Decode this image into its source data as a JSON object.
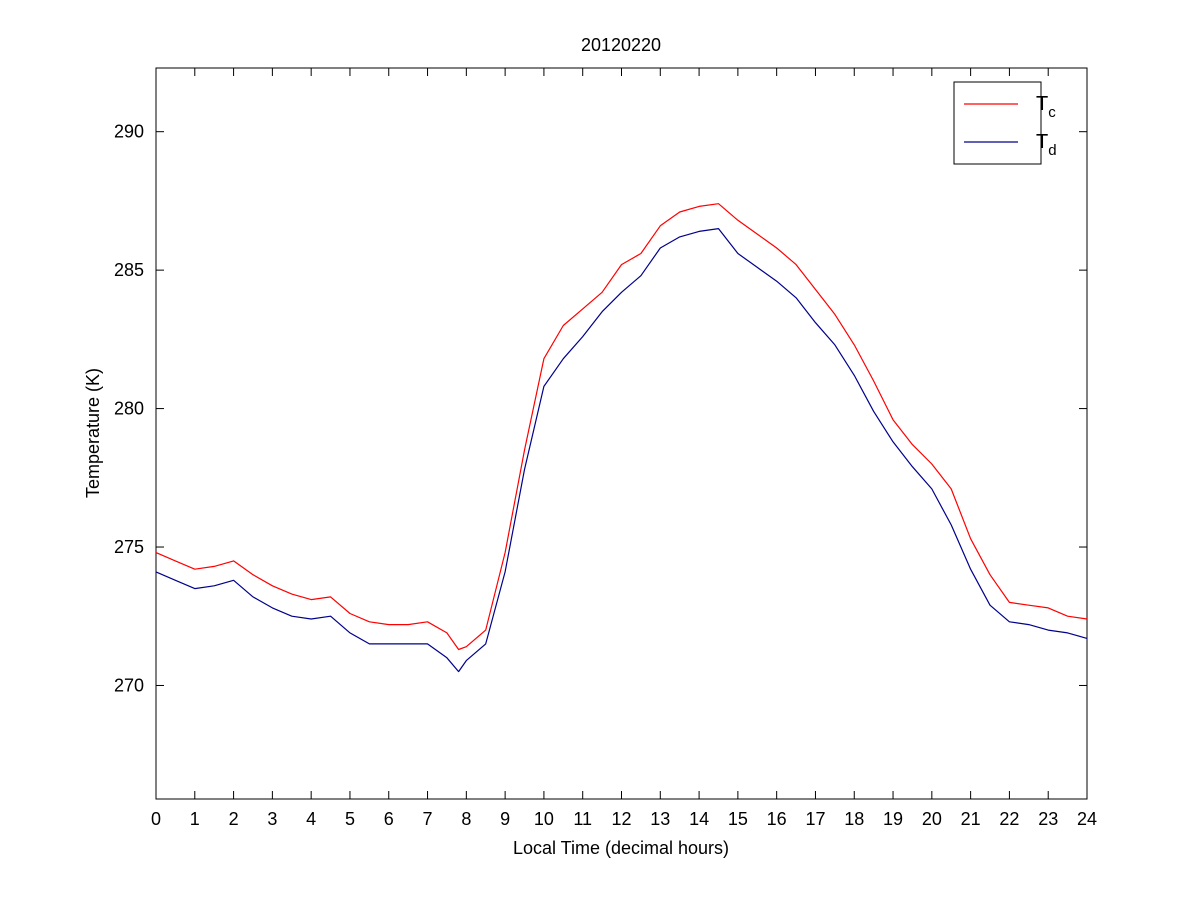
{
  "chart_data": {
    "type": "line",
    "title": "20120220",
    "xlabel": "Local Time (decimal hours)",
    "ylabel": "Temperature (K)",
    "xlim": [
      0,
      24
    ],
    "ylim": [
      265.9,
      292.3
    ],
    "xticks": [
      0,
      1,
      2,
      3,
      4,
      5,
      6,
      7,
      8,
      9,
      10,
      11,
      12,
      13,
      14,
      15,
      16,
      17,
      18,
      19,
      20,
      21,
      22,
      23,
      24
    ],
    "yticks": [
      270,
      275,
      280,
      285,
      290
    ],
    "grid": false,
    "legend_position": "top-right",
    "series": [
      {
        "name": "T_c",
        "label_main": "T",
        "label_sub": "c",
        "color": "#ff0000",
        "x": [
          0,
          0.5,
          1,
          1.5,
          2,
          2.5,
          3,
          3.5,
          4,
          4.5,
          5,
          5.5,
          6,
          6.5,
          7,
          7.5,
          7.8,
          8,
          8.5,
          9,
          9.5,
          10,
          10.5,
          11,
          11.5,
          12,
          12.5,
          13,
          13.5,
          14,
          14.5,
          15,
          15.5,
          16,
          16.5,
          17,
          17.5,
          18,
          18.5,
          19,
          19.5,
          20,
          20.5,
          21,
          21.5,
          22,
          22.5,
          23,
          23.5,
          24
        ],
        "y": [
          274.8,
          274.5,
          274.2,
          274.3,
          274.5,
          274.0,
          273.6,
          273.3,
          273.1,
          273.2,
          272.6,
          272.3,
          272.2,
          272.2,
          272.3,
          271.9,
          271.3,
          271.4,
          272.0,
          274.8,
          278.5,
          281.8,
          283.0,
          283.6,
          284.2,
          285.2,
          285.6,
          286.6,
          287.1,
          287.3,
          287.4,
          286.8,
          286.3,
          285.8,
          285.2,
          284.3,
          283.4,
          282.3,
          281.0,
          279.6,
          278.7,
          278.0,
          277.1,
          275.3,
          274.0,
          273.0,
          272.9,
          272.8,
          272.5,
          272.4
        ]
      },
      {
        "name": "T_d",
        "label_main": "T",
        "label_sub": "d",
        "color": "#00008b",
        "x": [
          0,
          0.5,
          1,
          1.5,
          2,
          2.5,
          3,
          3.5,
          4,
          4.5,
          5,
          5.5,
          6,
          6.5,
          7,
          7.5,
          7.8,
          8,
          8.5,
          9,
          9.5,
          10,
          10.5,
          11,
          11.5,
          12,
          12.5,
          13,
          13.5,
          14,
          14.5,
          15,
          15.5,
          16,
          16.5,
          17,
          17.5,
          18,
          18.5,
          19,
          19.5,
          20,
          20.5,
          21,
          21.5,
          22,
          22.5,
          23,
          23.5,
          24
        ],
        "y": [
          274.1,
          273.8,
          273.5,
          273.6,
          273.8,
          273.2,
          272.8,
          272.5,
          272.4,
          272.5,
          271.9,
          271.5,
          271.5,
          271.5,
          271.5,
          271.0,
          270.5,
          270.9,
          271.5,
          274.1,
          277.8,
          280.8,
          281.8,
          282.6,
          283.5,
          284.2,
          284.8,
          285.8,
          286.2,
          286.4,
          286.5,
          285.6,
          285.1,
          284.6,
          284.0,
          283.1,
          282.3,
          281.2,
          279.9,
          278.8,
          277.9,
          277.1,
          275.8,
          274.2,
          272.9,
          272.3,
          272.2,
          272.0,
          271.9,
          271.7
        ]
      }
    ]
  }
}
